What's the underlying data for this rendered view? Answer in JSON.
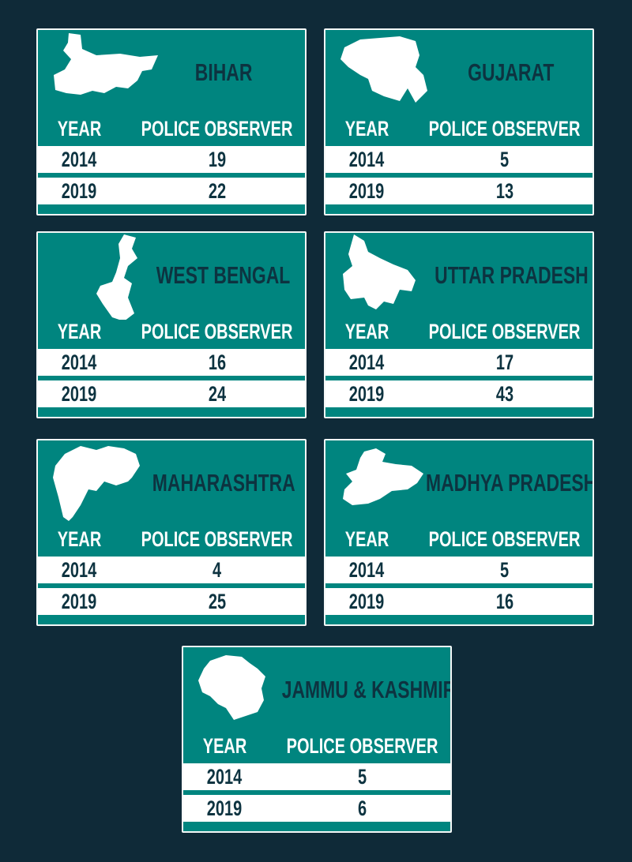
{
  "colors": {
    "background": "#0f2a38",
    "card": "#00857f",
    "text_dark": "#0d3340",
    "text_light": "#ffffff"
  },
  "chart_data": {
    "type": "table",
    "columns": [
      "YEAR",
      "POLICE OBSERVER"
    ],
    "tables": [
      {
        "state": "BIHAR",
        "icon": "bihar-map-icon",
        "rows": [
          [
            "2014",
            "19"
          ],
          [
            "2019",
            "22"
          ]
        ]
      },
      {
        "state": "GUJARAT",
        "icon": "gujarat-map-icon",
        "rows": [
          [
            "2014",
            "5"
          ],
          [
            "2019",
            "13"
          ]
        ]
      },
      {
        "state": "WEST BENGAL",
        "icon": "west-bengal-map-icon",
        "rows": [
          [
            "2014",
            "16"
          ],
          [
            "2019",
            "24"
          ]
        ]
      },
      {
        "state": "UTTAR PRADESH",
        "icon": "uttar-pradesh-map-icon",
        "rows": [
          [
            "2014",
            "17"
          ],
          [
            "2019",
            "43"
          ]
        ]
      },
      {
        "state": "MAHARASHTRA",
        "icon": "maharashtra-map-icon",
        "rows": [
          [
            "2014",
            "4"
          ],
          [
            "2019",
            "25"
          ]
        ]
      },
      {
        "state": "MADHYA PRADESH",
        "icon": "madhya-pradesh-map-icon",
        "rows": [
          [
            "2014",
            "5"
          ],
          [
            "2019",
            "16"
          ]
        ]
      },
      {
        "state": "JAMMU & KASHMIR",
        "icon": "jammu-kashmir-map-icon",
        "rows": [
          [
            "2014",
            "5"
          ],
          [
            "2019",
            "6"
          ]
        ]
      }
    ]
  }
}
